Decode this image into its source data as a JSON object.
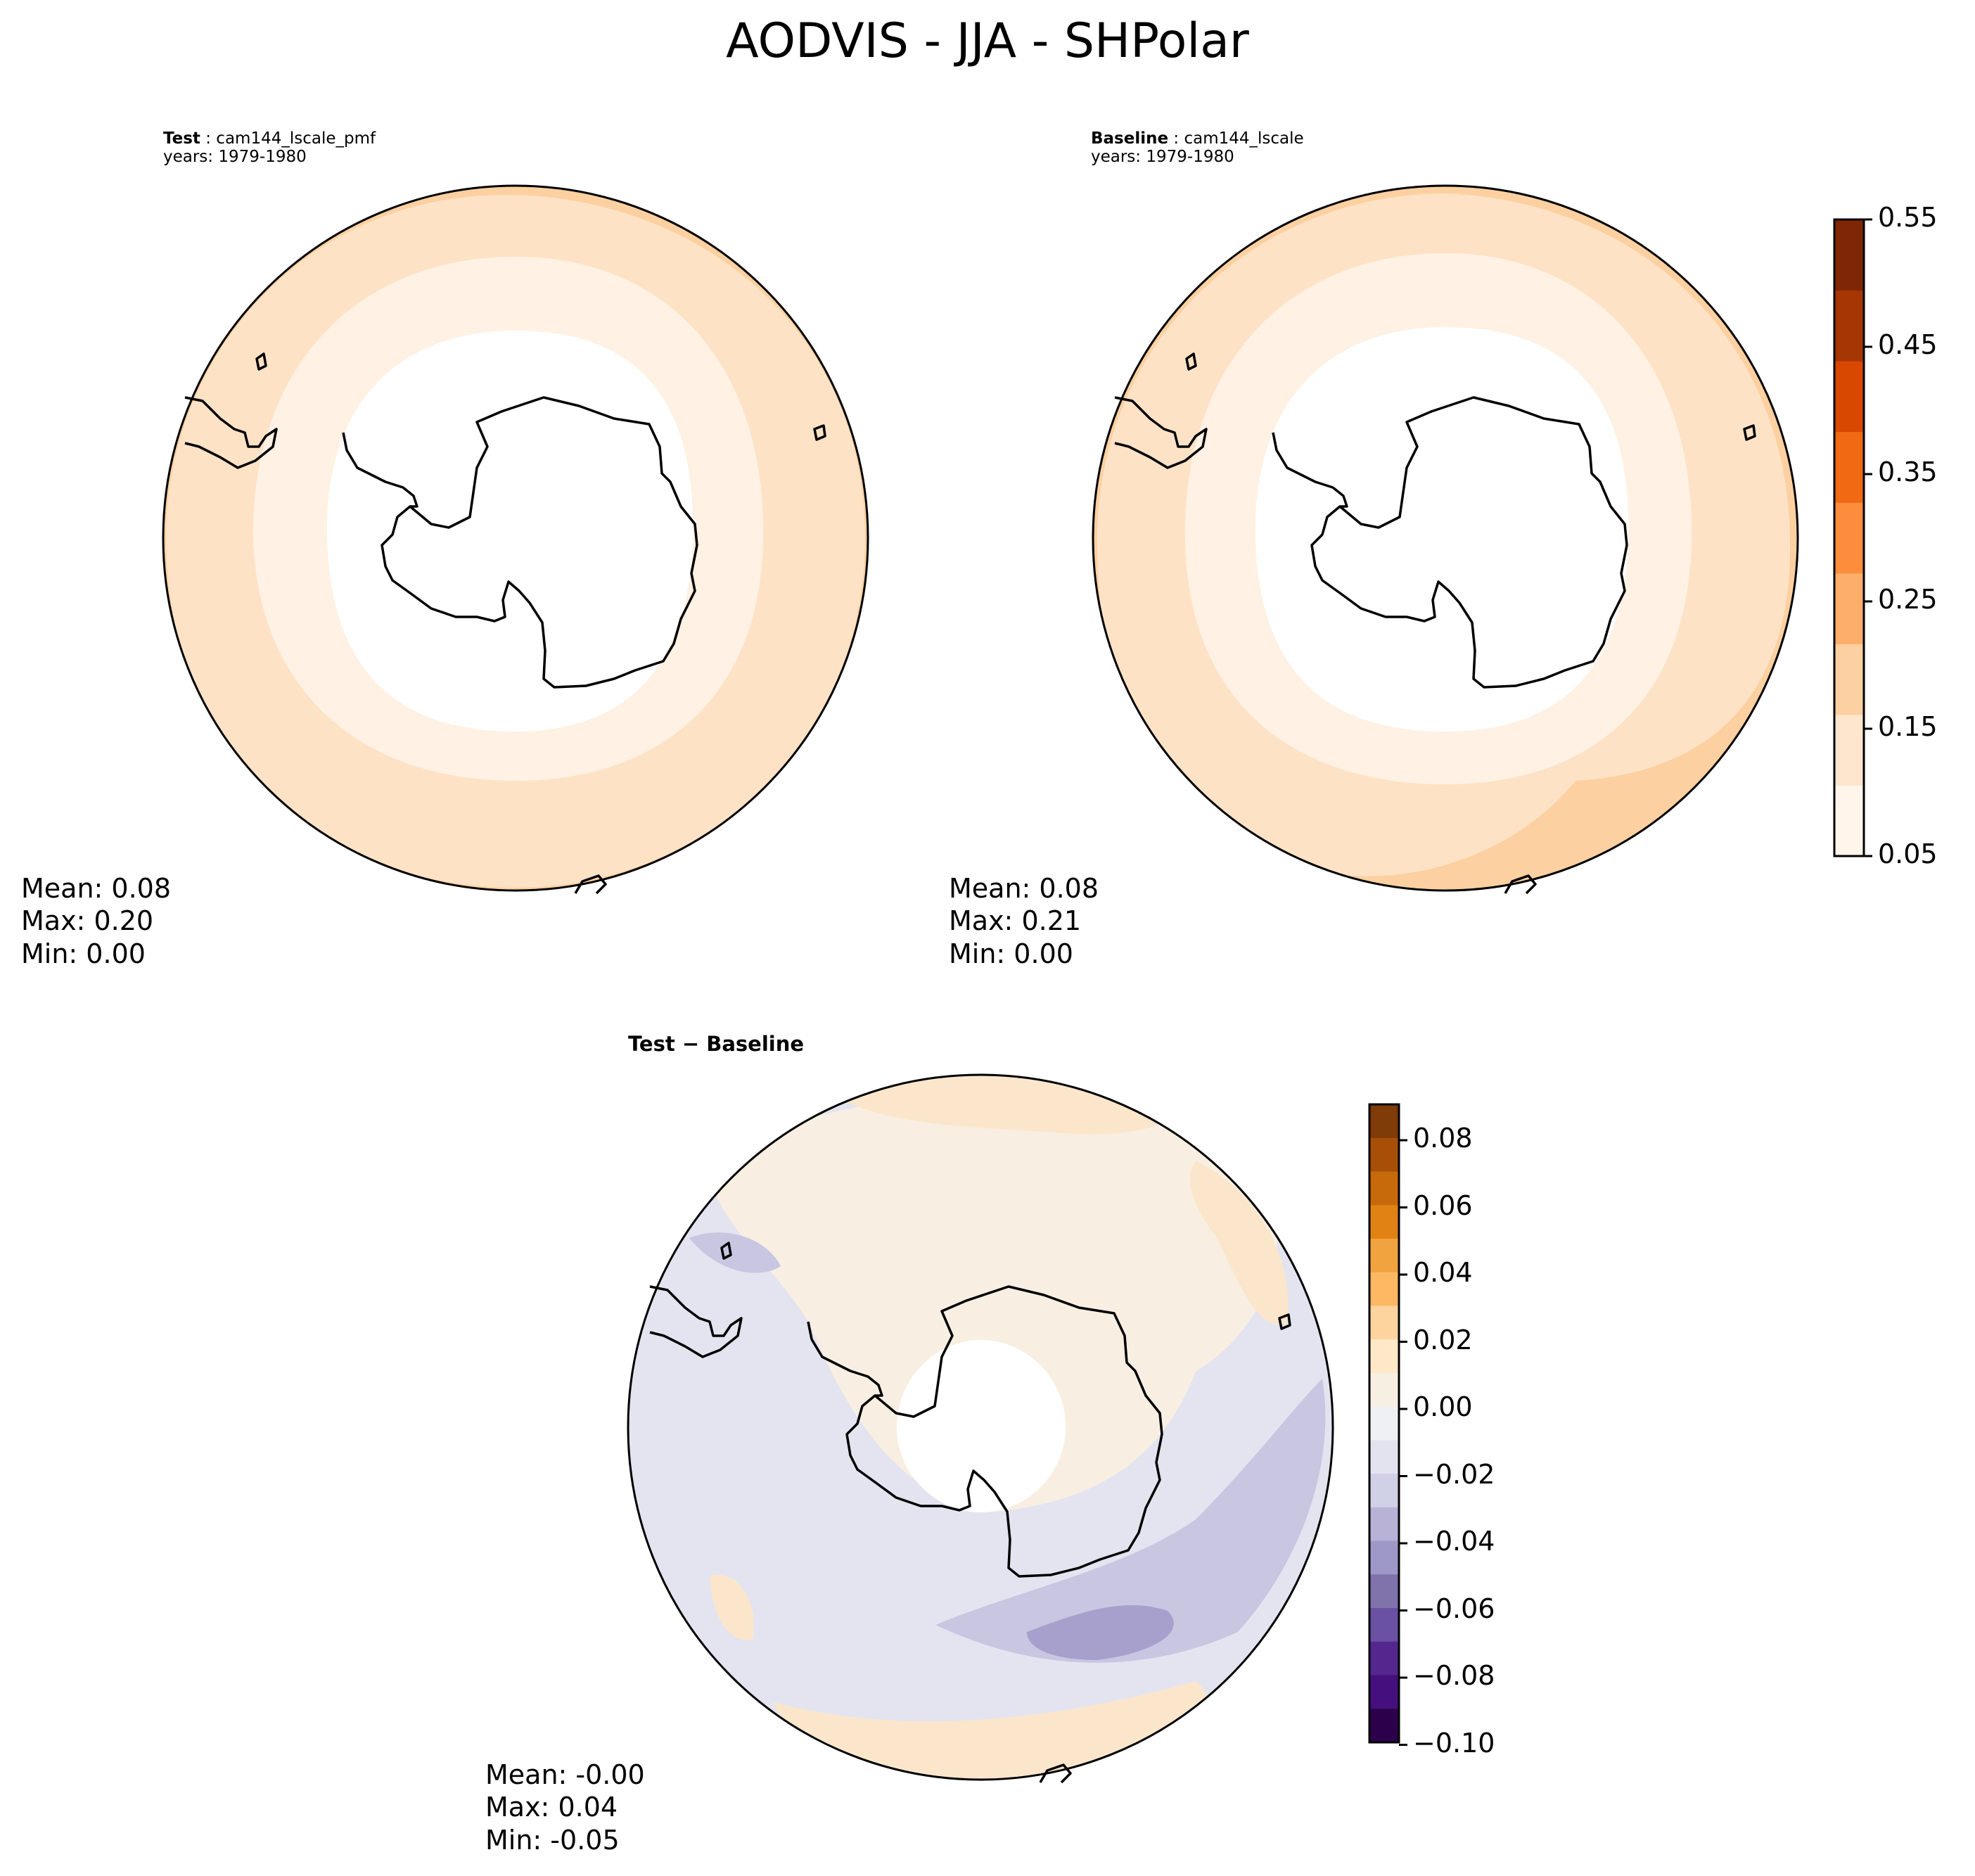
{
  "title": "AODVIS - JJA - SHPolar",
  "panels": [
    {
      "label_bold": "Test",
      "label_rest": " : cam144_lscale_pmf",
      "years": "years: 1979-1980",
      "stats": {
        "mean": "Mean:  0.08",
        "max": "Max:  0.20",
        "min": "Min:  0.00"
      }
    },
    {
      "label_bold": "Baseline",
      "label_rest": " : cam144_lscale",
      "years": "years: 1979-1980",
      "stats": {
        "mean": "Mean:  0.08",
        "max": "Max:  0.21",
        "min": "Min:  0.00"
      }
    },
    {
      "label_bold": "Test − Baseline",
      "stats": {
        "mean": "Mean: -0.00",
        "max": "Max:  0.04",
        "min": "Min: -0.05"
      }
    }
  ],
  "colorbars": {
    "main": {
      "ticks": [
        "0.05",
        "0.15",
        "0.25",
        "0.35",
        "0.45",
        "0.55"
      ],
      "colors": [
        "#fff5eb",
        "#fee6ce",
        "#fdd0a2",
        "#fdae6b",
        "#fd8d3c",
        "#f16913",
        "#d94801",
        "#a63603",
        "#7f2704"
      ]
    },
    "diff": {
      "ticks": [
        "0.08",
        "0.06",
        "0.04",
        "0.02",
        "0.00",
        "−0.02",
        "−0.04",
        "−0.06",
        "−0.08",
        "−0.10"
      ],
      "colors": [
        "#7f3b08",
        "#a84f07",
        "#c66a0b",
        "#e08214",
        "#f1a340",
        "#fdb863",
        "#fdd49e",
        "#fee8c8",
        "#f7efe2",
        "#eef0f4",
        "#e2e3ef",
        "#d0d0e6",
        "#b7b2d6",
        "#9e98c8",
        "#8073ac",
        "#6a51a3",
        "#54278f",
        "#45107e",
        "#2d004b"
      ]
    }
  },
  "map_colors": {
    "land": "#ffffff",
    "band1": "#fff1e3",
    "band2": "#fde2c6",
    "band3": "#fcd0a0",
    "diff_pos": "#fbe6cc",
    "diff_zero": "#f8efe2",
    "diff_neg": "#e4e4f0",
    "diff_neg2": "#c9c6e2",
    "diff_neg3": "#a79fcc"
  }
}
